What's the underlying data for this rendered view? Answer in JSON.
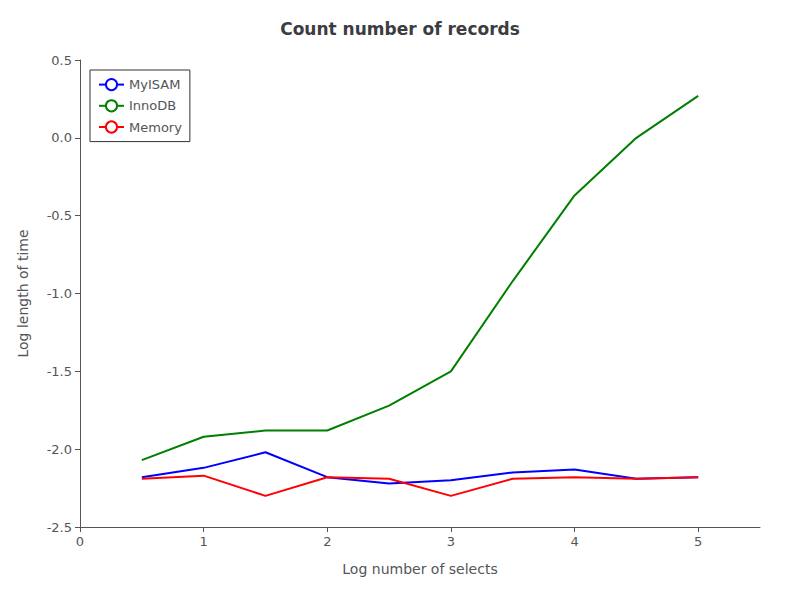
{
  "chart_data": {
    "type": "line",
    "title": "Count number of records",
    "xlabel": "Log number of selects",
    "ylabel": "Log length of time",
    "x": [
      0.5,
      1.0,
      1.5,
      2.0,
      2.5,
      3.0,
      3.5,
      4.0,
      4.5,
      5.0
    ],
    "series": [
      {
        "name": "MyISAM",
        "color": "#0000ff",
        "values": [
          -2.18,
          -2.12,
          -2.02,
          -2.18,
          -2.22,
          -2.2,
          -2.15,
          -2.13,
          -2.19,
          -2.18
        ]
      },
      {
        "name": "InnoDB",
        "color": "#007f00",
        "values": [
          -2.07,
          -1.92,
          -1.88,
          -1.88,
          -1.72,
          -1.5,
          -0.92,
          -0.37,
          0.0,
          0.27
        ]
      },
      {
        "name": "Memory",
        "color": "#ff0000",
        "values": [
          -2.19,
          -2.17,
          -2.3,
          -2.18,
          -2.19,
          -2.3,
          -2.19,
          -2.18,
          -2.19,
          -2.18
        ]
      }
    ],
    "xlim": [
      0,
      5.5
    ],
    "ylim": [
      -2.5,
      0.5
    ],
    "xticks": [
      0,
      1,
      2,
      3,
      4,
      5
    ],
    "yticks": [
      -2.5,
      {
        "value": -2,
        "label": "-2.0"
      },
      -1.5,
      {
        "value": -1,
        "label": "-1.0"
      },
      -0.5,
      {
        "value": 0,
        "label": "0.0"
      },
      0.5
    ],
    "legend": "upper left",
    "grid": false
  }
}
